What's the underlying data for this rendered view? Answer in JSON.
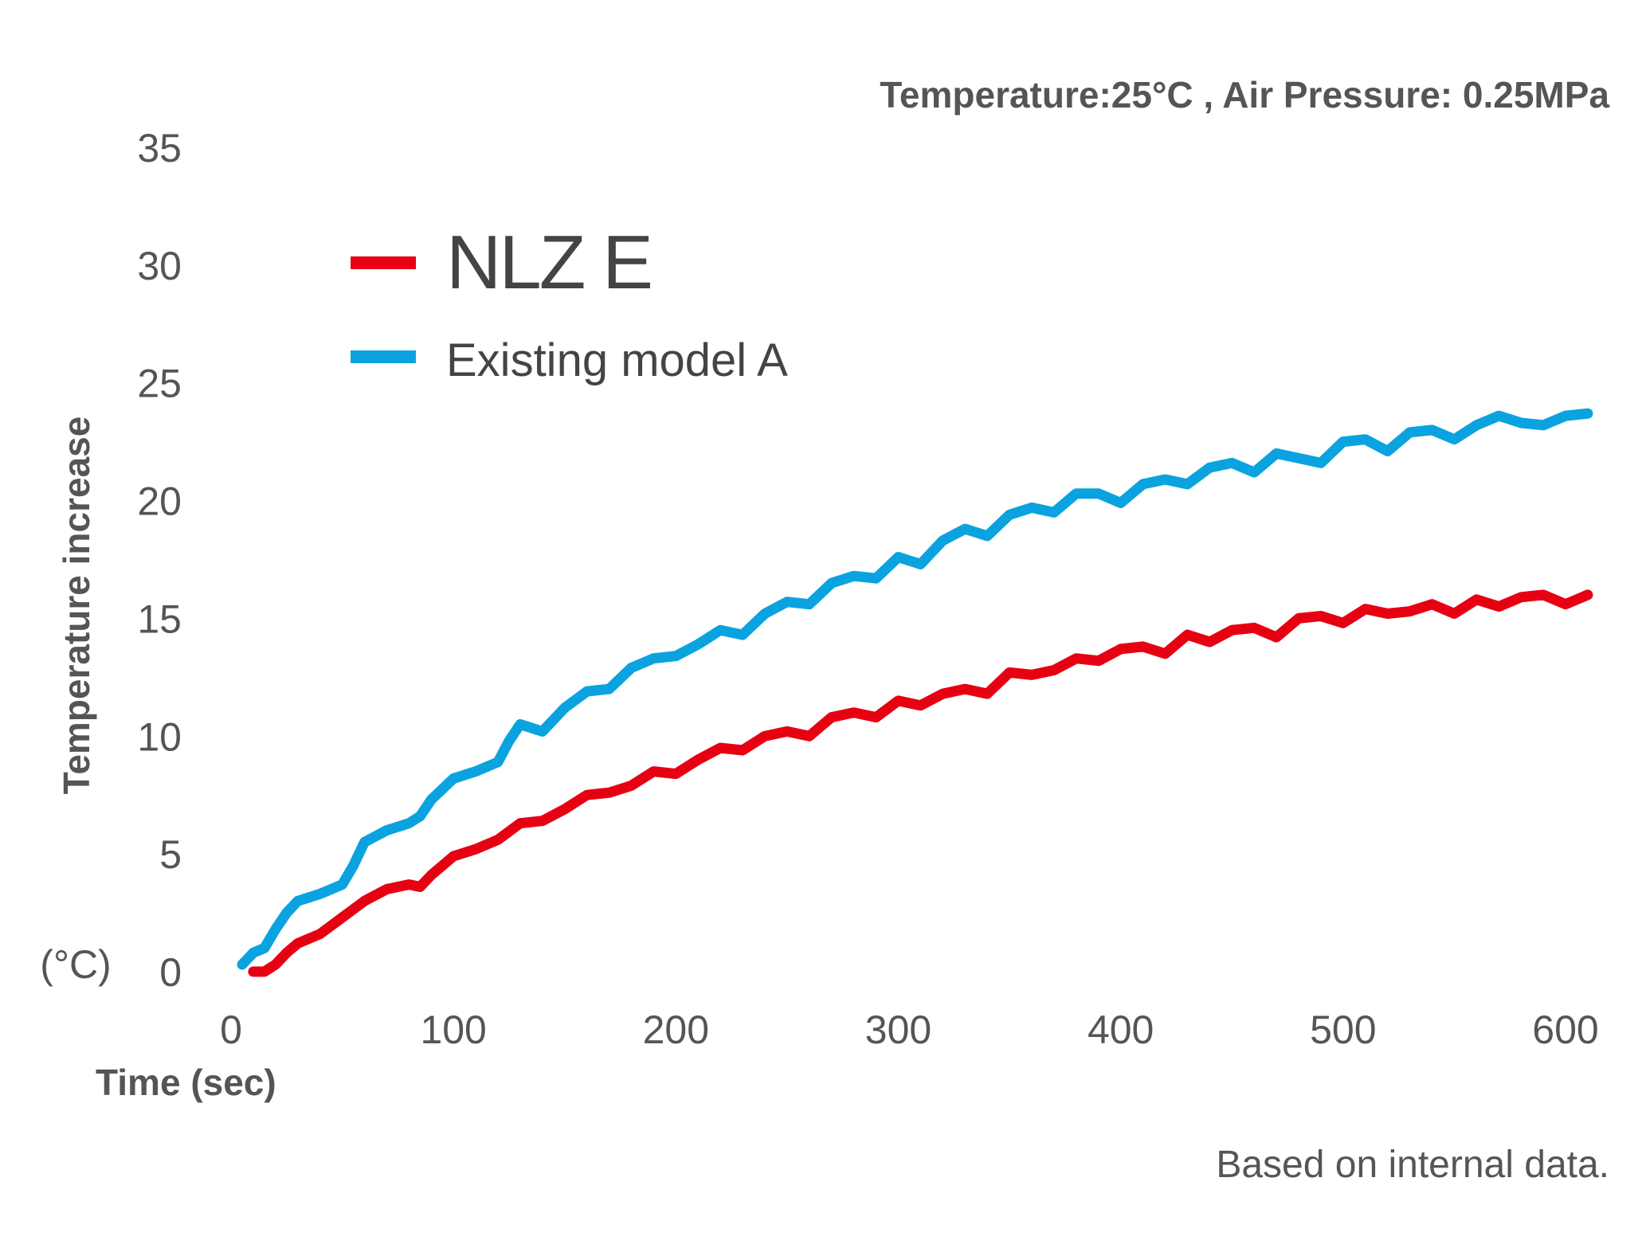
{
  "chart_data": {
    "type": "line",
    "title": "",
    "subtitle": "Temperature:25°C , Air Pressure: 0.25MPa",
    "xlabel": "Time (sec)",
    "ylabel": "Temperature increase",
    "y_unit_label": "(°C)",
    "footnote": "Based on internal data.",
    "xlim": [
      0,
      610
    ],
    "ylim": [
      0,
      35
    ],
    "x_ticks": [
      0,
      100,
      200,
      300,
      400,
      500,
      600
    ],
    "y_ticks": [
      0,
      5,
      10,
      15,
      20,
      25,
      30,
      35
    ],
    "grid": false,
    "legend_position": "top-left",
    "series": [
      {
        "name": "NLZ E",
        "color": "#e60012",
        "x": [
          10,
          15,
          20,
          25,
          30,
          40,
          50,
          60,
          70,
          80,
          85,
          90,
          100,
          110,
          120,
          130,
          140,
          150,
          160,
          170,
          180,
          190,
          200,
          210,
          220,
          230,
          240,
          250,
          260,
          270,
          280,
          290,
          300,
          310,
          320,
          330,
          340,
          350,
          360,
          370,
          380,
          390,
          400,
          410,
          420,
          430,
          440,
          450,
          460,
          470,
          480,
          490,
          500,
          510,
          520,
          530,
          540,
          550,
          560,
          570,
          580,
          590,
          600,
          610
        ],
        "y": [
          0,
          0,
          0.3,
          0.8,
          1.2,
          1.6,
          2.3,
          3.0,
          3.5,
          3.7,
          3.6,
          4.1,
          4.9,
          5.2,
          5.6,
          6.3,
          6.4,
          6.9,
          7.5,
          7.6,
          7.9,
          8.5,
          8.4,
          9.0,
          9.5,
          9.4,
          10.0,
          10.2,
          10.0,
          10.8,
          11.0,
          10.8,
          11.5,
          11.3,
          11.8,
          12.0,
          11.8,
          12.7,
          12.6,
          12.8,
          13.3,
          13.2,
          13.7,
          13.8,
          13.5,
          14.3,
          14.0,
          14.5,
          14.6,
          14.2,
          15.0,
          15.1,
          14.8,
          15.4,
          15.2,
          15.3,
          15.6,
          15.2,
          15.8,
          15.5,
          15.9,
          16.0,
          15.6,
          16.0
        ]
      },
      {
        "name": "Existing model A",
        "color": "#0aa3e0",
        "x": [
          5,
          10,
          15,
          20,
          25,
          30,
          40,
          50,
          55,
          60,
          70,
          80,
          85,
          90,
          100,
          110,
          120,
          125,
          130,
          140,
          150,
          160,
          170,
          180,
          190,
          200,
          210,
          220,
          230,
          240,
          250,
          260,
          270,
          280,
          290,
          300,
          310,
          320,
          330,
          340,
          350,
          360,
          370,
          380,
          390,
          400,
          410,
          420,
          430,
          440,
          450,
          460,
          470,
          480,
          490,
          500,
          510,
          520,
          530,
          540,
          550,
          560,
          570,
          580,
          590,
          600,
          610
        ],
        "y": [
          0.3,
          0.8,
          1.0,
          1.8,
          2.5,
          3.0,
          3.3,
          3.7,
          4.5,
          5.5,
          6.0,
          6.3,
          6.6,
          7.3,
          8.2,
          8.5,
          8.9,
          9.8,
          10.5,
          10.2,
          11.2,
          11.9,
          12.0,
          12.9,
          13.3,
          13.4,
          13.9,
          14.5,
          14.3,
          15.2,
          15.7,
          15.6,
          16.5,
          16.8,
          16.7,
          17.6,
          17.3,
          18.3,
          18.8,
          18.5,
          19.4,
          19.7,
          19.5,
          20.3,
          20.3,
          19.9,
          20.7,
          20.9,
          20.7,
          21.4,
          21.6,
          21.2,
          22.0,
          21.8,
          21.6,
          22.5,
          22.6,
          22.1,
          22.9,
          23.0,
          22.6,
          23.2,
          23.6,
          23.3,
          23.2,
          23.6,
          23.7
        ]
      }
    ]
  }
}
